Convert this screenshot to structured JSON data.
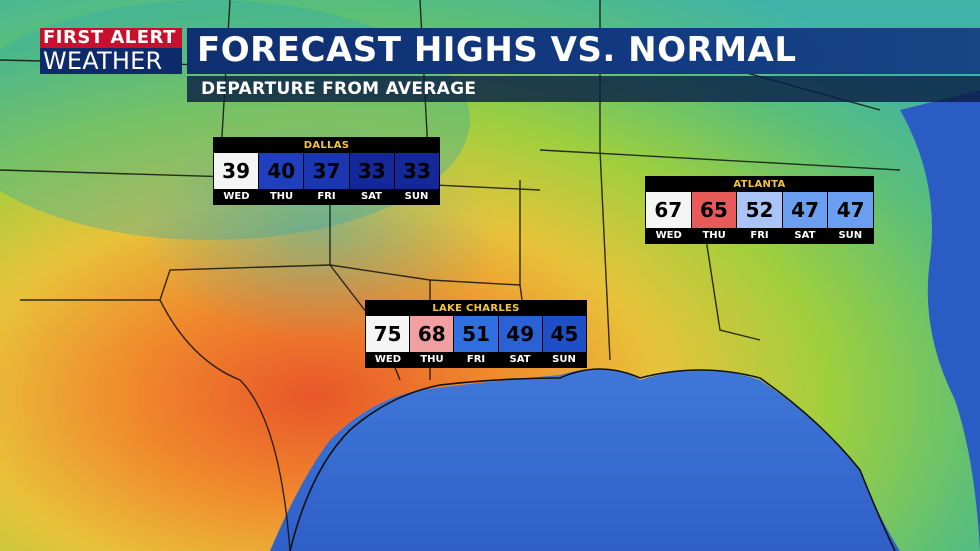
{
  "branding": {
    "line1": "FIRST ALERT",
    "line2": "WEATHER"
  },
  "title": "FORECAST HIGHS VS. NORMAL",
  "subtitle": "DEPARTURE FROM AVERAGE",
  "colors": {
    "title_bar": "#123a82",
    "logo_red": "#c8102e",
    "city_label": "#f2c53d"
  },
  "panels": [
    {
      "city": "DALLAS",
      "days": [
        {
          "day": "WED",
          "temp": "39",
          "color": "#f5f5f5"
        },
        {
          "day": "THU",
          "temp": "40",
          "color": "#1f3fbf"
        },
        {
          "day": "FRI",
          "temp": "37",
          "color": "#1a36b0"
        },
        {
          "day": "SAT",
          "temp": "33",
          "color": "#15289a"
        },
        {
          "day": "SUN",
          "temp": "33",
          "color": "#15289a"
        }
      ]
    },
    {
      "city": "ATLANTA",
      "days": [
        {
          "day": "WED",
          "temp": "67",
          "color": "#f5f5f5"
        },
        {
          "day": "THU",
          "temp": "65",
          "color": "#e65a5a"
        },
        {
          "day": "FRI",
          "temp": "52",
          "color": "#a9c4f5"
        },
        {
          "day": "SAT",
          "temp": "47",
          "color": "#6a9ef0"
        },
        {
          "day": "SUN",
          "temp": "47",
          "color": "#6a9ef0"
        }
      ]
    },
    {
      "city": "LAKE CHARLES",
      "days": [
        {
          "day": "WED",
          "temp": "75",
          "color": "#f5f5f5"
        },
        {
          "day": "THU",
          "temp": "68",
          "color": "#f0a0a0"
        },
        {
          "day": "FRI",
          "temp": "51",
          "color": "#2f6fe0"
        },
        {
          "day": "SAT",
          "temp": "49",
          "color": "#2a62d6"
        },
        {
          "day": "SUN",
          "temp": "45",
          "color": "#1f4fc8"
        }
      ]
    }
  ]
}
